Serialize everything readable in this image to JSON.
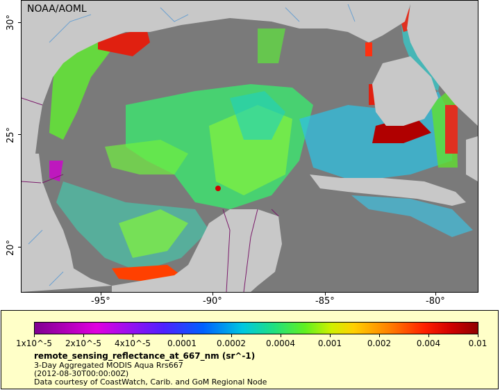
{
  "map": {
    "credit": "NOAA/AOML",
    "latitude_labels": [
      "30°",
      "25°",
      "20°"
    ],
    "longitude_labels": [
      "-95°",
      "-90°",
      "-85°",
      "-80°"
    ],
    "colors": {
      "ocean_nodata": "#7a7a7a",
      "land": "#c8c8c8",
      "boundaries": "#7a1a6a",
      "rivers": "#6aa0d0"
    }
  },
  "legend": {
    "colorbar_ticks": [
      "1x10^-5",
      "2x10^-5",
      "4x10^-5",
      "0.0001",
      "0.0002",
      "0.0004",
      "0.001",
      "0.002",
      "0.004",
      "0.01"
    ],
    "variable": "remote_sensing_reflectance_at_667_nm (sr^-1)",
    "line1": "3-Day Aggregated MODIS Aqua Rrs667",
    "line2": "(2012-08-30T00:00:00Z)",
    "line3": "Data courtesy of CoastWatch, Carib. and GoM Regional Node"
  }
}
